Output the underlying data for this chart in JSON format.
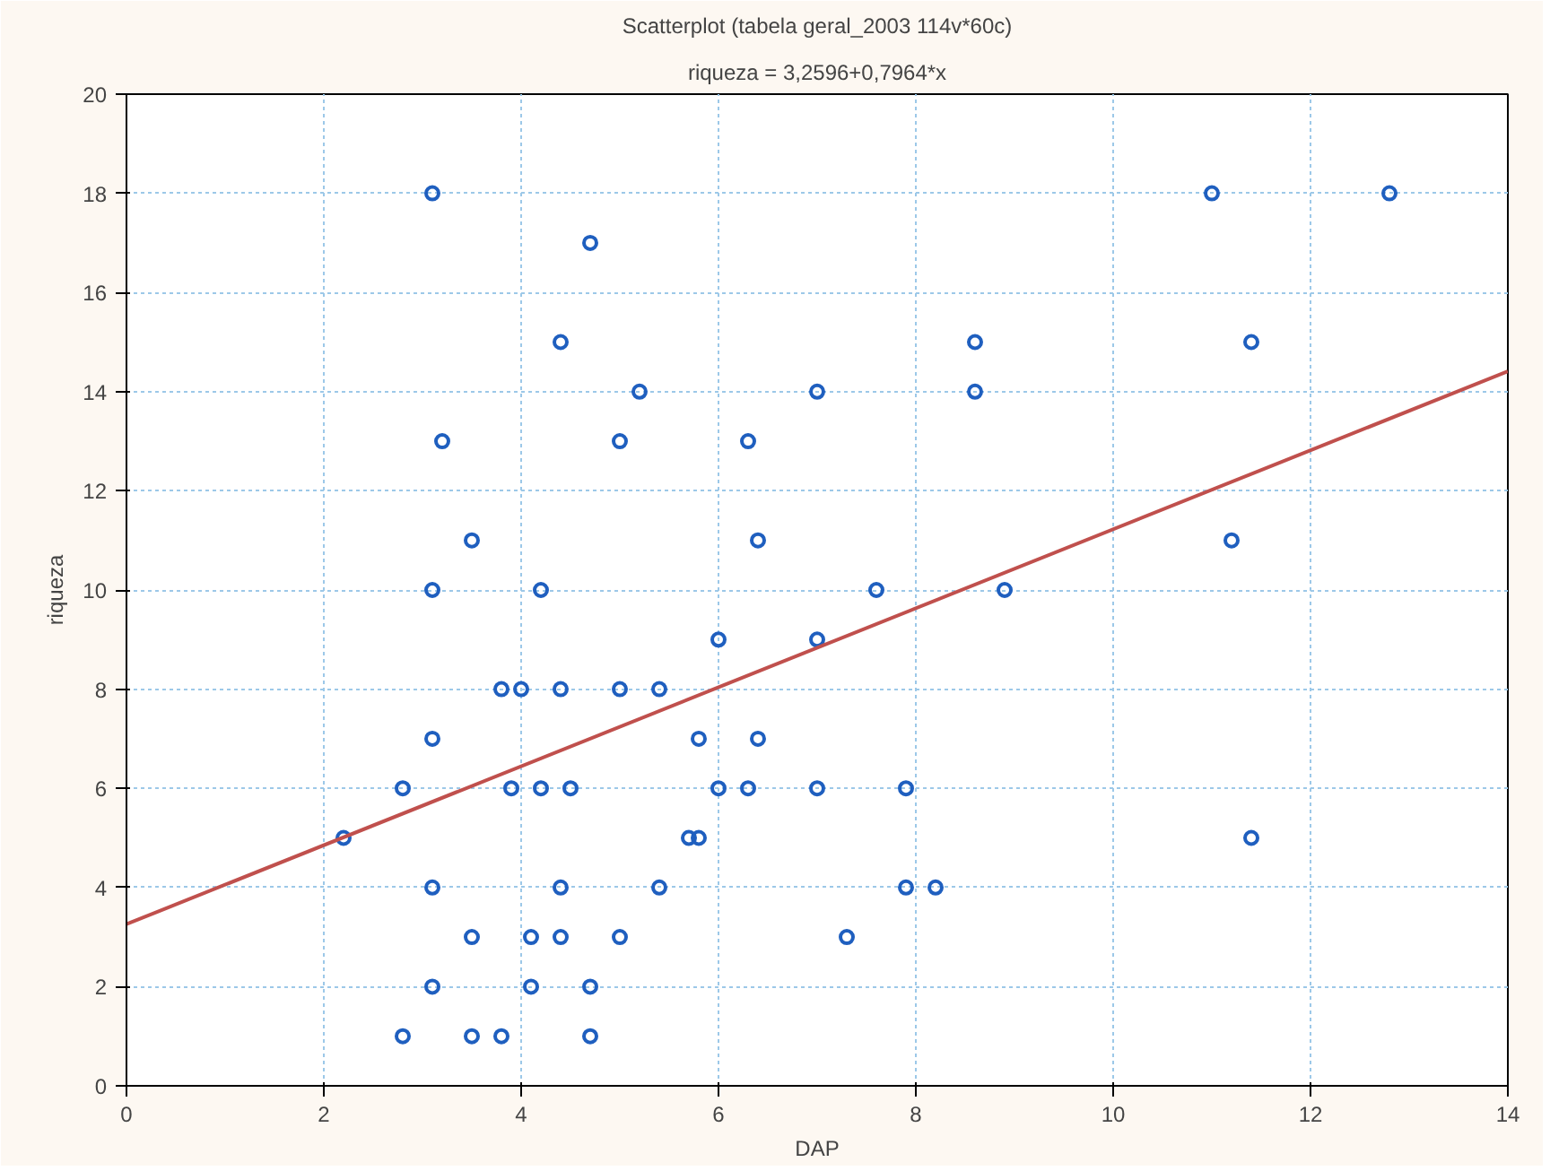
{
  "chart_data": {
    "type": "scatter",
    "title": "Scatterplot (tabela geral_2003 114v*60c)",
    "subtitle": "riqueza = 3,2596+0,7964*x",
    "xlabel": "DAP",
    "ylabel": "riqueza",
    "xlim": [
      0,
      14
    ],
    "xticks": [
      0,
      2,
      4,
      6,
      8,
      10,
      12,
      14
    ],
    "ylim": [
      0,
      20
    ],
    "yticks": [
      0,
      2,
      4,
      6,
      8,
      10,
      12,
      14,
      16,
      18,
      20
    ],
    "grid": true,
    "series": [
      {
        "color": "#1f5fbf",
        "marker": "circle",
        "x": [
          3.1,
          4.7,
          4.4,
          5.2,
          3.2,
          5.0,
          3.5,
          3.1,
          4.2,
          3.8,
          4.0,
          4.4,
          5.0,
          5.4,
          3.1,
          2.8,
          3.9,
          4.2,
          4.5,
          2.2,
          3.1,
          4.4,
          3.5,
          4.1,
          4.4,
          5.0,
          3.1,
          4.1,
          4.7,
          2.8,
          3.5,
          3.8,
          4.7,
          11.0,
          12.8,
          8.6,
          11.4,
          7.0,
          8.6,
          6.3,
          6.4,
          11.2,
          7.6,
          8.9,
          6.0,
          7.0,
          5.8,
          6.4,
          6.0,
          6.3,
          7.0,
          7.9,
          5.7,
          5.8,
          11.4,
          5.4,
          7.9,
          8.2,
          7.3
        ],
        "values": [
          18,
          17,
          15,
          14,
          13,
          13,
          11,
          10,
          10,
          8,
          8,
          8,
          8,
          8,
          7,
          6,
          6,
          6,
          6,
          5,
          4,
          4,
          3,
          3,
          3,
          3,
          2,
          2,
          2,
          1,
          1,
          1,
          1,
          18,
          18,
          15,
          15,
          14,
          14,
          13,
          11,
          11,
          10,
          10,
          9,
          9,
          7,
          7,
          6,
          6,
          6,
          6,
          5,
          5,
          5,
          4,
          4,
          4,
          3
        ]
      },
      {
        "type": "line",
        "color": "#c0504d",
        "x": [
          0,
          14
        ],
        "values": [
          3.26,
          14.41
        ]
      }
    ]
  }
}
